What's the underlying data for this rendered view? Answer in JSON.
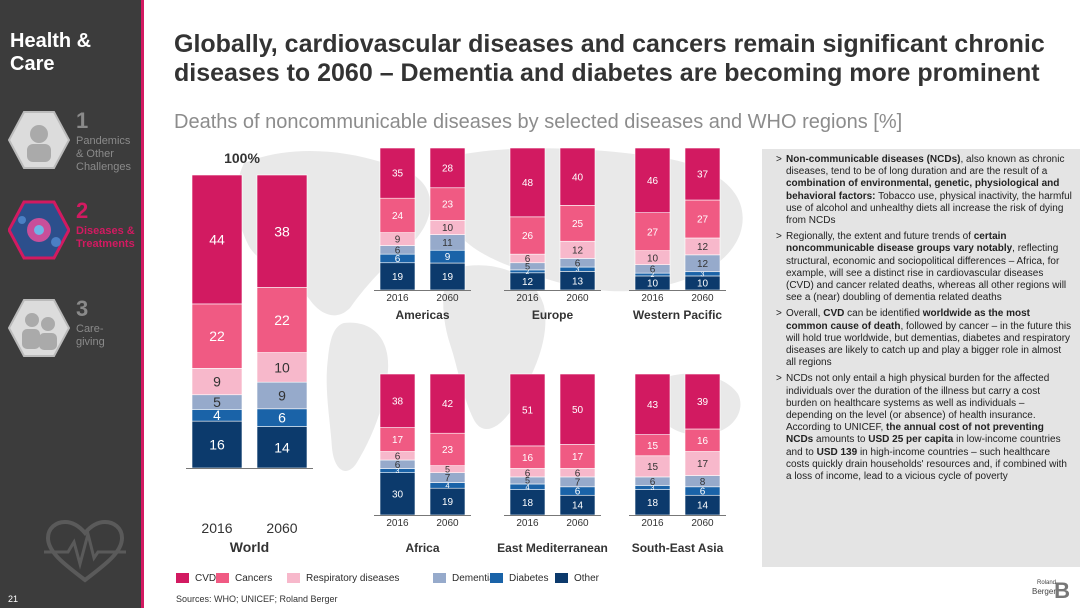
{
  "sidebar": {
    "brand": "Health &\nCare",
    "page_number": "21",
    "nav": [
      {
        "num": "1",
        "label": "Pandemics\n& Other\nChallenges",
        "active": false
      },
      {
        "num": "2",
        "label": "Diseases &\nTreatments",
        "active": true
      },
      {
        "num": "3",
        "label": "Care-\ngiving",
        "active": false
      }
    ]
  },
  "header": {
    "title": "Globally, cardiovascular diseases and cancers remain significant chronic diseases to 2060 – Dementia and diabetes are becoming more prominent",
    "subtitle": "Deaths of noncommunicable diseases by selected diseases and WHO regions [%]"
  },
  "chart_data": {
    "type": "bar",
    "stacked": true,
    "unit": "%",
    "world_total_label": "100%",
    "series_colors": {
      "CVD": "#d21a61",
      "Cancers": "#f05a83",
      "Respiratory diseases": "#f7b8cb",
      "Dementias": "#96aacb",
      "Diabetes": "#1a63a8",
      "Other": "#0c3a6c"
    },
    "legend": [
      "CVD",
      "Cancers",
      "Respiratory diseases",
      "Dementias",
      "Diabetes",
      "Other"
    ],
    "panels": [
      {
        "name": "World",
        "years": [
          "2016",
          "2060"
        ],
        "data": [
          {
            "CVD": 44,
            "Cancers": 22,
            "Respiratory diseases": 9,
            "Dementias": 5,
            "Diabetes": 4,
            "Other": 16
          },
          {
            "CVD": 38,
            "Cancers": 22,
            "Respiratory diseases": 10,
            "Dementias": 9,
            "Diabetes": 6,
            "Other": 14
          }
        ]
      },
      {
        "name": "Americas",
        "years": [
          "2016",
          "2060"
        ],
        "data": [
          {
            "CVD": 35,
            "Cancers": 24,
            "Respiratory diseases": 9,
            "Dementias": 6,
            "Diabetes": 6,
            "Other": 19
          },
          {
            "CVD": 28,
            "Cancers": 23,
            "Respiratory diseases": 10,
            "Dementias": 11,
            "Diabetes": 9,
            "Other": 19
          }
        ]
      },
      {
        "name": "Europe",
        "years": [
          "2016",
          "2060"
        ],
        "data": [
          {
            "CVD": 48,
            "Cancers": 26,
            "Respiratory diseases": 6,
            "Dementias": 5,
            "Diabetes": 2,
            "Other": 12
          },
          {
            "CVD": 40,
            "Cancers": 25,
            "Respiratory diseases": 12,
            "Dementias": 6,
            "Diabetes": 3,
            "Other": 13
          }
        ]
      },
      {
        "name": "Western Pacific",
        "years": [
          "2016",
          "2060"
        ],
        "data": [
          {
            "CVD": 46,
            "Cancers": 27,
            "Respiratory diseases": 10,
            "Dementias": 6,
            "Diabetes": 2,
            "Other": 10
          },
          {
            "CVD": 37,
            "Cancers": 27,
            "Respiratory diseases": 12,
            "Dementias": 12,
            "Diabetes": 3,
            "Other": 10
          }
        ]
      },
      {
        "name": "Africa",
        "years": [
          "2016",
          "2060"
        ],
        "data": [
          {
            "CVD": 38,
            "Cancers": 17,
            "Respiratory diseases": 6,
            "Dementias": 6,
            "Diabetes": 3,
            "Other": 30
          },
          {
            "CVD": 42,
            "Cancers": 23,
            "Respiratory diseases": 5,
            "Dementias": 7,
            "Diabetes": 4,
            "Other": 19
          }
        ]
      },
      {
        "name": "East Mediterranean",
        "years": [
          "2016",
          "2060"
        ],
        "data": [
          {
            "CVD": 51,
            "Cancers": 16,
            "Respiratory diseases": 6,
            "Dementias": 5,
            "Diabetes": 4,
            "Other": 18
          },
          {
            "CVD": 50,
            "Cancers": 17,
            "Respiratory diseases": 6,
            "Dementias": 7,
            "Diabetes": 6,
            "Other": 14
          }
        ]
      },
      {
        "name": "South-East Asia",
        "years": [
          "2016",
          "2060"
        ],
        "data": [
          {
            "CVD": 43,
            "Cancers": 15,
            "Respiratory diseases": 15,
            "Dementias": 6,
            "Diabetes": 3,
            "Other": 18
          },
          {
            "CVD": 39,
            "Cancers": 16,
            "Respiratory diseases": 17,
            "Dementias": 8,
            "Diabetes": 6,
            "Other": 14
          }
        ]
      }
    ]
  },
  "text_panel": {
    "bullets": [
      [
        {
          "t": "Non-communicable diseases (NCDs)",
          "b": true
        },
        {
          "t": ", also known as chronic diseases, tend to be of long duration and are the result of a "
        },
        {
          "t": "combination of environmental, genetic, physiological and behavioral factors:",
          "b": true
        },
        {
          "t": " Tobacco use, physical inactivity, the harmful use of alcohol and unhealthy diets all increase the risk of dying from NCDs"
        }
      ],
      [
        {
          "t": "Regionally, the extent and future trends of "
        },
        {
          "t": "certain noncommunicable disease groups vary notably",
          "b": true
        },
        {
          "t": ", reflecting structural, economic and sociopolitical differences – Africa, for example, will see a distinct rise in cardiovascular diseases (CVD) and cancer related deaths, whereas all other regions will see a (near) doubling of dementia related deaths"
        }
      ],
      [
        {
          "t": "Overall, "
        },
        {
          "t": "CVD",
          "b": true
        },
        {
          "t": " can be identified "
        },
        {
          "t": "worldwide as the most common cause of death",
          "b": true
        },
        {
          "t": ", followed by cancer – in the future this will hold true worldwide, but dementias, diabetes and respiratory diseases are likely to catch up and play a bigger role in almost all regions"
        }
      ],
      [
        {
          "t": "NCDs not only entail a high physical burden for the affected individuals over the duration of the illness but carry a cost burden on healthcare systems as well as individuals – depending on the level (or absence) of health insurance. According to UNICEF, "
        },
        {
          "t": "the annual cost of not preventing NCDs",
          "b": true
        },
        {
          "t": " amounts to "
        },
        {
          "t": "USD 25 per capita",
          "b": true
        },
        {
          "t": " in low-income countries and to "
        },
        {
          "t": "USD 139",
          "b": true
        },
        {
          "t": " in high-income countries – such healthcare costs quickly drain households' resources and, if combined with a loss of income, lead to a vicious cycle of poverty"
        }
      ]
    ]
  },
  "footer": {
    "sources": "Sources: WHO; UNICEF; Roland Berger",
    "logo_small": "Roland",
    "logo_name": "Berger"
  }
}
